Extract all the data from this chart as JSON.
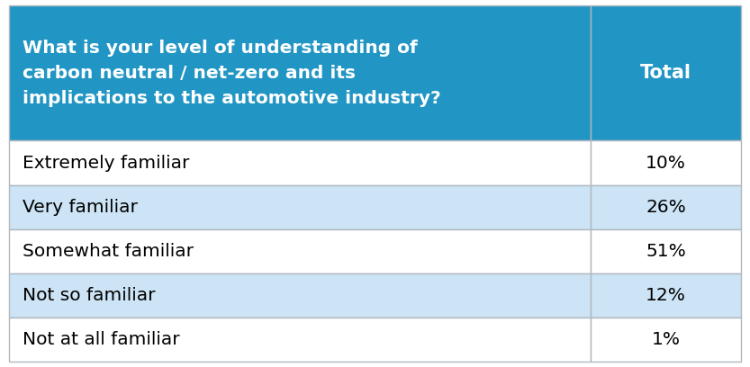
{
  "header_question": "What is your level of understanding of\ncarbon neutral / net-zero and its\nimplications to the automotive industry?",
  "header_total": "Total",
  "rows": [
    {
      "label": "Extremely familiar",
      "value": "10%",
      "bg": "#ffffff"
    },
    {
      "label": "Very familiar",
      "value": "26%",
      "bg": "#cce4f5"
    },
    {
      "label": "Somewhat familiar",
      "value": "51%",
      "bg": "#ffffff"
    },
    {
      "label": "Not so familiar",
      "value": "12%",
      "bg": "#cce4f5"
    },
    {
      "label": "Not at all familiar",
      "value": "1%",
      "bg": "#ffffff"
    }
  ],
  "header_bg": "#2196c4",
  "header_text_color": "#ffffff",
  "body_text_color": "#000000",
  "border_color": "#b0b8c0",
  "fig_bg": "#ffffff",
  "col_split": 0.795,
  "header_fontsize": 14.5,
  "body_fontsize": 14.5,
  "total_header_fontsize": 15
}
